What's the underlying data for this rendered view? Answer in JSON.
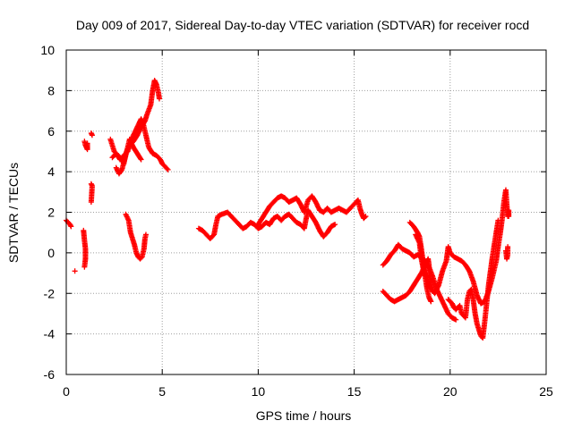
{
  "chart_data": {
    "type": "scatter",
    "title": "Day 009 of 2017, Sidereal Day-to-day VTEC variation (SDTVAR) for receiver rocd",
    "xlabel": "GPS time / hours",
    "ylabel": "SDTVAR / TECUs",
    "xlim": [
      0,
      25
    ],
    "ylim": [
      -6,
      10
    ],
    "xticks": [
      0,
      5,
      10,
      15,
      20,
      25
    ],
    "yticks": [
      -6,
      -4,
      -2,
      0,
      2,
      4,
      6,
      8,
      10
    ],
    "grid": true,
    "marker": "+",
    "color": "#ff0000",
    "series": [
      {
        "name": "SDTVAR",
        "segments": [
          [
            [
              0.0,
              1.6
            ],
            [
              0.1,
              1.5
            ],
            [
              0.2,
              1.4
            ],
            [
              0.25,
              1.3
            ]
          ],
          [
            [
              0.45,
              -0.9
            ]
          ],
          [
            [
              0.9,
              1.1
            ],
            [
              0.95,
              0.6
            ],
            [
              1.0,
              0.2
            ],
            [
              1.0,
              -0.3
            ],
            [
              0.95,
              -0.7
            ]
          ],
          [
            [
              0.95,
              5.5
            ],
            [
              1.0,
              5.3
            ],
            [
              1.05,
              5.2
            ],
            [
              1.1,
              5.1
            ],
            [
              1.1,
              5.4
            ]
          ],
          [
            [
              1.3,
              5.9
            ],
            [
              1.35,
              5.8
            ]
          ],
          [
            [
              1.3,
              3.4
            ],
            [
              1.35,
              3.3
            ],
            [
              1.3,
              2.5
            ]
          ],
          [
            [
              2.3,
              5.6
            ],
            [
              2.5,
              5.0
            ],
            [
              2.7,
              4.8
            ],
            [
              2.9,
              4.6
            ],
            [
              3.0,
              4.4
            ],
            [
              3.1,
              4.9
            ],
            [
              3.3,
              5.3
            ],
            [
              3.5,
              5.5
            ],
            [
              3.7,
              5.8
            ],
            [
              3.9,
              6.2
            ],
            [
              4.1,
              6.5
            ],
            [
              4.2,
              6.8
            ],
            [
              4.4,
              7.3
            ],
            [
              4.5,
              8.0
            ],
            [
              4.6,
              8.5
            ],
            [
              4.7,
              8.3
            ],
            [
              4.8,
              7.9
            ],
            [
              4.85,
              7.6
            ]
          ],
          [
            [
              2.4,
              4.7
            ],
            [
              2.6,
              4.9
            ],
            [
              2.8,
              4.6
            ],
            [
              3.0,
              4.8
            ],
            [
              3.2,
              5.0
            ],
            [
              3.4,
              5.6
            ],
            [
              3.6,
              6.0
            ],
            [
              3.8,
              6.4
            ],
            [
              3.9,
              6.6
            ],
            [
              4.0,
              6.4
            ],
            [
              4.1,
              6.0
            ],
            [
              4.2,
              5.6
            ],
            [
              4.3,
              5.2
            ],
            [
              4.5,
              4.9
            ],
            [
              4.7,
              4.8
            ],
            [
              4.9,
              4.6
            ],
            [
              5.0,
              4.4
            ],
            [
              5.2,
              4.2
            ],
            [
              5.3,
              4.1
            ]
          ],
          [
            [
              2.6,
              4.2
            ],
            [
              2.75,
              3.9
            ],
            [
              2.9,
              4.1
            ],
            [
              3.1,
              4.8
            ],
            [
              3.3,
              5.6
            ],
            [
              3.5,
              5.2
            ],
            [
              3.7,
              4.9
            ],
            [
              3.9,
              4.6
            ]
          ],
          [
            [
              3.1,
              1.9
            ],
            [
              3.25,
              1.6
            ],
            [
              3.35,
              1.0
            ],
            [
              3.45,
              0.7
            ],
            [
              3.55,
              0.4
            ],
            [
              3.65,
              0.0
            ],
            [
              3.75,
              -0.2
            ],
            [
              3.85,
              -0.3
            ],
            [
              3.95,
              -0.2
            ],
            [
              4.05,
              0.2
            ],
            [
              4.1,
              0.7
            ],
            [
              4.15,
              0.9
            ]
          ],
          [
            [
              6.9,
              1.2
            ],
            [
              7.1,
              1.1
            ],
            [
              7.3,
              0.9
            ],
            [
              7.5,
              0.7
            ],
            [
              7.7,
              0.9
            ],
            [
              7.8,
              1.4
            ],
            [
              7.9,
              1.8
            ],
            [
              8.1,
              1.9
            ],
            [
              8.4,
              2.0
            ],
            [
              8.6,
              1.8
            ],
            [
              8.8,
              1.6
            ],
            [
              9.0,
              1.4
            ],
            [
              9.2,
              1.2
            ],
            [
              9.4,
              1.3
            ],
            [
              9.6,
              1.5
            ],
            [
              9.8,
              1.4
            ],
            [
              10.0,
              1.2
            ],
            [
              10.2,
              1.3
            ],
            [
              10.4,
              1.5
            ],
            [
              10.6,
              1.4
            ],
            [
              10.8,
              1.7
            ],
            [
              11.0,
              1.8
            ],
            [
              11.2,
              1.6
            ],
            [
              11.4,
              1.8
            ],
            [
              11.6,
              1.9
            ],
            [
              11.8,
              1.7
            ],
            [
              12.0,
              1.5
            ],
            [
              12.2,
              1.4
            ],
            [
              12.4,
              1.2
            ],
            [
              12.5,
              1.7
            ],
            [
              12.6,
              2.1
            ],
            [
              12.8,
              1.8
            ],
            [
              13.0,
              1.5
            ],
            [
              13.2,
              1.1
            ],
            [
              13.4,
              0.8
            ],
            [
              13.6,
              1.0
            ],
            [
              13.8,
              1.3
            ],
            [
              14.0,
              1.4
            ]
          ],
          [
            [
              10.0,
              1.4
            ],
            [
              10.2,
              1.7
            ],
            [
              10.4,
              2.0
            ],
            [
              10.6,
              2.3
            ],
            [
              10.8,
              2.5
            ],
            [
              11.0,
              2.7
            ],
            [
              11.2,
              2.8
            ],
            [
              11.4,
              2.7
            ],
            [
              11.6,
              2.5
            ],
            [
              11.8,
              2.6
            ],
            [
              12.0,
              2.7
            ],
            [
              12.2,
              2.4
            ],
            [
              12.4,
              2.0
            ],
            [
              12.6,
              2.6
            ],
            [
              12.8,
              2.8
            ],
            [
              13.0,
              2.5
            ],
            [
              13.2,
              2.1
            ],
            [
              13.4,
              2.0
            ],
            [
              13.6,
              2.2
            ],
            [
              13.8,
              2.0
            ],
            [
              14.0,
              2.1
            ],
            [
              14.2,
              2.2
            ],
            [
              14.4,
              2.1
            ],
            [
              14.6,
              2.0
            ],
            [
              14.8,
              2.2
            ],
            [
              15.0,
              2.4
            ],
            [
              15.2,
              2.6
            ],
            [
              15.3,
              2.2
            ],
            [
              15.4,
              1.9
            ],
            [
              15.5,
              1.7
            ],
            [
              15.6,
              1.8
            ]
          ],
          [
            [
              16.5,
              -0.6
            ],
            [
              16.7,
              -0.4
            ],
            [
              16.9,
              -0.1
            ],
            [
              17.1,
              0.1
            ],
            [
              17.3,
              0.4
            ],
            [
              17.5,
              0.2
            ],
            [
              17.7,
              0.1
            ],
            [
              17.9,
              0.0
            ],
            [
              18.1,
              -0.2
            ],
            [
              18.3,
              -0.1
            ],
            [
              18.5,
              -0.2
            ],
            [
              18.7,
              -0.5
            ],
            [
              18.9,
              -0.7
            ],
            [
              19.1,
              -1.2
            ],
            [
              19.3,
              -1.8
            ],
            [
              19.5,
              -2.2
            ],
            [
              19.7,
              -2.6
            ],
            [
              19.9,
              -3.0
            ],
            [
              20.1,
              -3.2
            ],
            [
              20.3,
              -3.3
            ]
          ],
          [
            [
              16.5,
              -1.9
            ],
            [
              16.7,
              -2.1
            ],
            [
              16.9,
              -2.3
            ],
            [
              17.1,
              -2.4
            ],
            [
              17.3,
              -2.3
            ],
            [
              17.5,
              -2.2
            ],
            [
              17.7,
              -2.1
            ],
            [
              17.9,
              -1.9
            ],
            [
              18.1,
              -1.6
            ],
            [
              18.3,
              -1.3
            ],
            [
              18.5,
              -1.0
            ],
            [
              18.7,
              -0.6
            ],
            [
              18.85,
              -0.3
            ],
            [
              18.9,
              -0.6
            ],
            [
              18.9,
              -1.0
            ],
            [
              19.0,
              -1.5
            ],
            [
              19.1,
              -1.9
            ]
          ],
          [
            [
              17.9,
              1.5
            ],
            [
              18.1,
              1.3
            ],
            [
              18.3,
              1.0
            ],
            [
              18.4,
              0.8
            ],
            [
              18.5,
              0.2
            ],
            [
              18.6,
              -0.5
            ],
            [
              18.7,
              -1.2
            ],
            [
              18.8,
              -1.8
            ],
            [
              18.9,
              -2.2
            ],
            [
              19.0,
              -2.4
            ]
          ],
          [
            [
              18.2,
              0.9
            ],
            [
              18.4,
              0.5
            ],
            [
              18.5,
              -0.3
            ],
            [
              18.6,
              -0.8
            ],
            [
              18.8,
              -1.3
            ],
            [
              19.0,
              -1.8
            ],
            [
              19.2,
              -2.0
            ],
            [
              19.4,
              -1.6
            ],
            [
              19.6,
              -0.9
            ],
            [
              19.8,
              -0.4
            ],
            [
              19.9,
              0.3
            ],
            [
              20.0,
              0.0
            ],
            [
              20.2,
              -0.2
            ],
            [
              20.4,
              -0.3
            ],
            [
              20.6,
              -0.4
            ],
            [
              20.8,
              -0.6
            ],
            [
              21.0,
              -0.9
            ],
            [
              21.2,
              -1.4
            ],
            [
              21.4,
              -2.1
            ],
            [
              21.6,
              -2.5
            ],
            [
              21.8,
              -2.4
            ],
            [
              22.0,
              -1.9
            ],
            [
              22.2,
              -1.2
            ],
            [
              22.4,
              -0.4
            ],
            [
              22.5,
              0.3
            ],
            [
              22.6,
              0.9
            ],
            [
              22.7,
              1.6
            ],
            [
              22.8,
              2.5
            ],
            [
              22.9,
              3.1
            ],
            [
              22.95,
              2.4
            ],
            [
              23.0,
              1.8
            ]
          ],
          [
            [
              19.9,
              -2.3
            ],
            [
              20.1,
              -2.5
            ],
            [
              20.2,
              -2.7
            ],
            [
              20.3,
              -2.8
            ],
            [
              20.5,
              -2.6
            ],
            [
              20.6,
              -3.0
            ],
            [
              20.8,
              -3.2
            ],
            [
              20.9,
              -2.3
            ],
            [
              21.0,
              -1.9
            ],
            [
              21.1,
              -1.8
            ],
            [
              21.2,
              -2.3
            ],
            [
              21.3,
              -3.0
            ],
            [
              21.4,
              -3.5
            ],
            [
              21.5,
              -3.8
            ],
            [
              21.6,
              -4.1
            ],
            [
              21.7,
              -4.2
            ],
            [
              21.8,
              -3.4
            ],
            [
              21.9,
              -2.5
            ],
            [
              22.0,
              -1.6
            ],
            [
              22.1,
              -0.9
            ],
            [
              22.2,
              -0.2
            ],
            [
              22.3,
              0.4
            ],
            [
              22.4,
              1.0
            ],
            [
              22.5,
              1.6
            ]
          ],
          [
            [
              22.9,
              0.1
            ],
            [
              22.95,
              -0.3
            ],
            [
              23.0,
              -0.1
            ],
            [
              23.0,
              0.3
            ]
          ],
          [
            [
              23.05,
              1.8
            ],
            [
              23.05,
              2.1
            ]
          ]
        ]
      }
    ]
  }
}
